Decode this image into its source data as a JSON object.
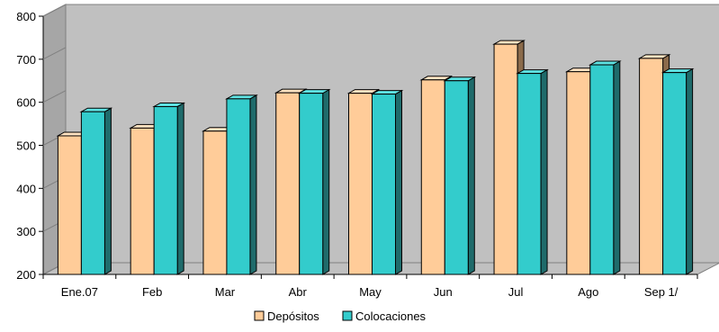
{
  "chart_data": {
    "type": "bar",
    "title": "",
    "xlabel": "",
    "ylabel": "",
    "categories": [
      "Ene.07",
      "Feb",
      "Mar",
      "Abr",
      "May",
      "Jun",
      "Jul",
      "Ago",
      "Sep 1/"
    ],
    "series": [
      {
        "name": "Depósitos",
        "values": [
          522,
          540,
          533,
          622,
          621,
          652,
          735,
          671,
          702
        ],
        "color": "#FFCC99",
        "top_color": "#FFE3C2",
        "side_color": "#8B6B4B"
      },
      {
        "name": "Colocaciones",
        "values": [
          578,
          590,
          608,
          621,
          619,
          650,
          667,
          687,
          669
        ],
        "color": "#33CCCC",
        "top_color": "#5FE3E3",
        "side_color": "#1F6B6B"
      }
    ],
    "ylim": [
      200,
      800
    ],
    "yticks": [
      200,
      300,
      400,
      500,
      600,
      700,
      800
    ],
    "grid": false,
    "three_d": true,
    "wall_color": "#C0C0C0",
    "legend_position": "bottom"
  }
}
